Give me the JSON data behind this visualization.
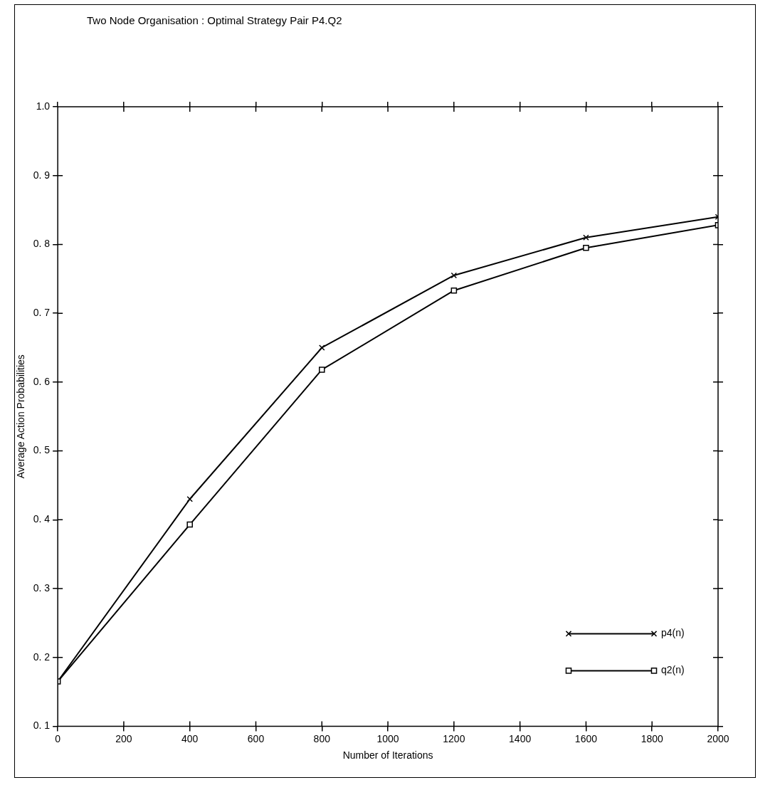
{
  "chart_data": {
    "type": "line",
    "title": "Two Node Organisation : Optimal Strategy Pair P4.Q2",
    "xlabel": "Number of Iterations",
    "ylabel": "Average Action Probabilities",
    "x": [
      0,
      400,
      800,
      1200,
      1600,
      2000
    ],
    "series": [
      {
        "name": "p4(n)",
        "color": "#000000",
        "marker": "cross",
        "values": [
          0.165,
          0.43,
          0.65,
          0.755,
          0.81,
          0.84
        ]
      },
      {
        "name": "q2(n)",
        "color": "#000000",
        "marker": "square",
        "values": [
          0.165,
          0.393,
          0.618,
          0.733,
          0.795,
          0.828
        ]
      }
    ],
    "xlim": [
      0,
      2000
    ],
    "xticks": [
      0,
      200,
      400,
      600,
      800,
      1000,
      1200,
      1400,
      1600,
      1800,
      2000
    ],
    "ylim": [
      0.1,
      1.0
    ],
    "yticks": [
      0.1,
      0.2,
      0.3,
      0.4,
      0.5,
      0.6,
      0.7,
      0.8,
      0.9,
      {
        "value": 1.0,
        "label": "1.0"
      }
    ],
    "grid": false,
    "legend": "bottom right",
    "line_style": "solid"
  }
}
